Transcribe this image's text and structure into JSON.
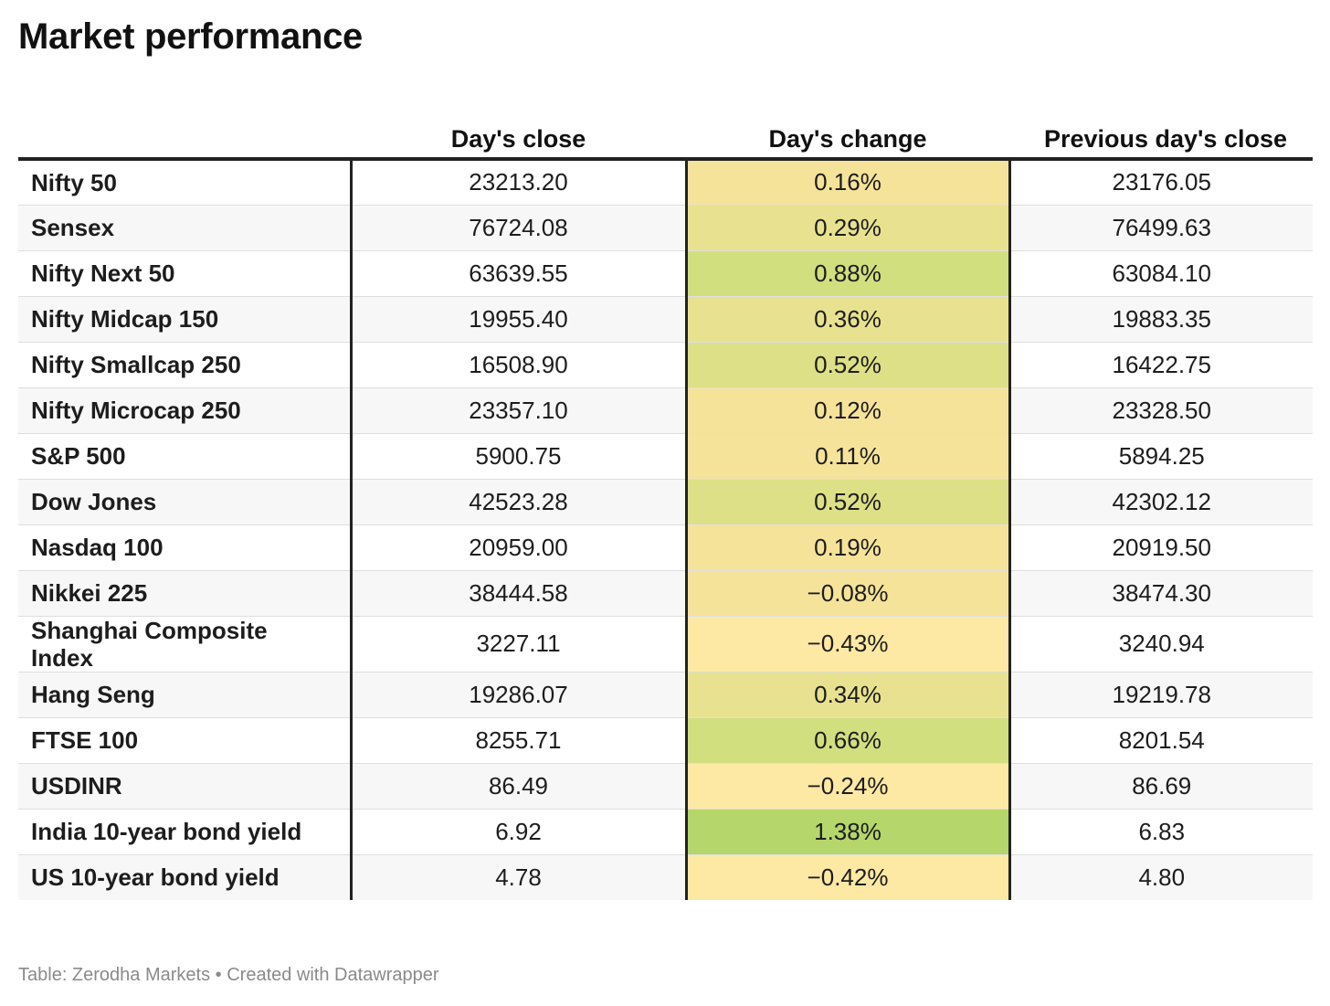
{
  "title": "Market performance",
  "footer": "Table: Zerodha Markets • Created with Datawrapper",
  "colors": {
    "text": "#1d1d1d",
    "border": "#222222",
    "row_alt": "#f7f7f7",
    "change_scale": [
      "#fde9a4",
      "#f6e39a",
      "#e8e290",
      "#dde086",
      "#d2df7f",
      "#b5d66a"
    ]
  },
  "chart_data": {
    "type": "table",
    "title": "Market performance",
    "columns": [
      "",
      "Day's close",
      "Day's change",
      "Previous day's close"
    ],
    "rows": [
      {
        "name": "Nifty 50",
        "close": "23213.20",
        "change": "0.16%",
        "change_value": 0.16,
        "prev": "23176.05"
      },
      {
        "name": "Sensex",
        "close": "76724.08",
        "change": "0.29%",
        "change_value": 0.29,
        "prev": "76499.63"
      },
      {
        "name": "Nifty Next 50",
        "close": "63639.55",
        "change": "0.88%",
        "change_value": 0.88,
        "prev": "63084.10"
      },
      {
        "name": "Nifty Midcap 150",
        "close": "19955.40",
        "change": "0.36%",
        "change_value": 0.36,
        "prev": "19883.35"
      },
      {
        "name": "Nifty Smallcap 250",
        "close": "16508.90",
        "change": "0.52%",
        "change_value": 0.52,
        "prev": "16422.75"
      },
      {
        "name": "Nifty Microcap 250",
        "close": "23357.10",
        "change": "0.12%",
        "change_value": 0.12,
        "prev": "23328.50"
      },
      {
        "name": "S&P 500",
        "close": "5900.75",
        "change": "0.11%",
        "change_value": 0.11,
        "prev": "5894.25"
      },
      {
        "name": "Dow Jones",
        "close": "42523.28",
        "change": "0.52%",
        "change_value": 0.52,
        "prev": "42302.12"
      },
      {
        "name": "Nasdaq 100",
        "close": "20959.00",
        "change": "0.19%",
        "change_value": 0.19,
        "prev": "20919.50"
      },
      {
        "name": "Nikkei 225",
        "close": "38444.58",
        "change": "−0.08%",
        "change_value": -0.08,
        "prev": "38474.30"
      },
      {
        "name": "Shanghai Composite Index",
        "close": "3227.11",
        "change": "−0.43%",
        "change_value": -0.43,
        "prev": "3240.94"
      },
      {
        "name": "Hang Seng",
        "close": "19286.07",
        "change": "0.34%",
        "change_value": 0.34,
        "prev": "19219.78"
      },
      {
        "name": "FTSE 100",
        "close": "8255.71",
        "change": "0.66%",
        "change_value": 0.66,
        "prev": "8201.54"
      },
      {
        "name": "USDINR",
        "close": "86.49",
        "change": "−0.24%",
        "change_value": -0.24,
        "prev": "86.69"
      },
      {
        "name": "India 10-year bond yield",
        "close": "6.92",
        "change": "1.38%",
        "change_value": 1.38,
        "prev": "6.83"
      },
      {
        "name": "US 10-year bond yield",
        "close": "4.78",
        "change": "−0.42%",
        "change_value": -0.42,
        "prev": "4.80"
      }
    ]
  }
}
